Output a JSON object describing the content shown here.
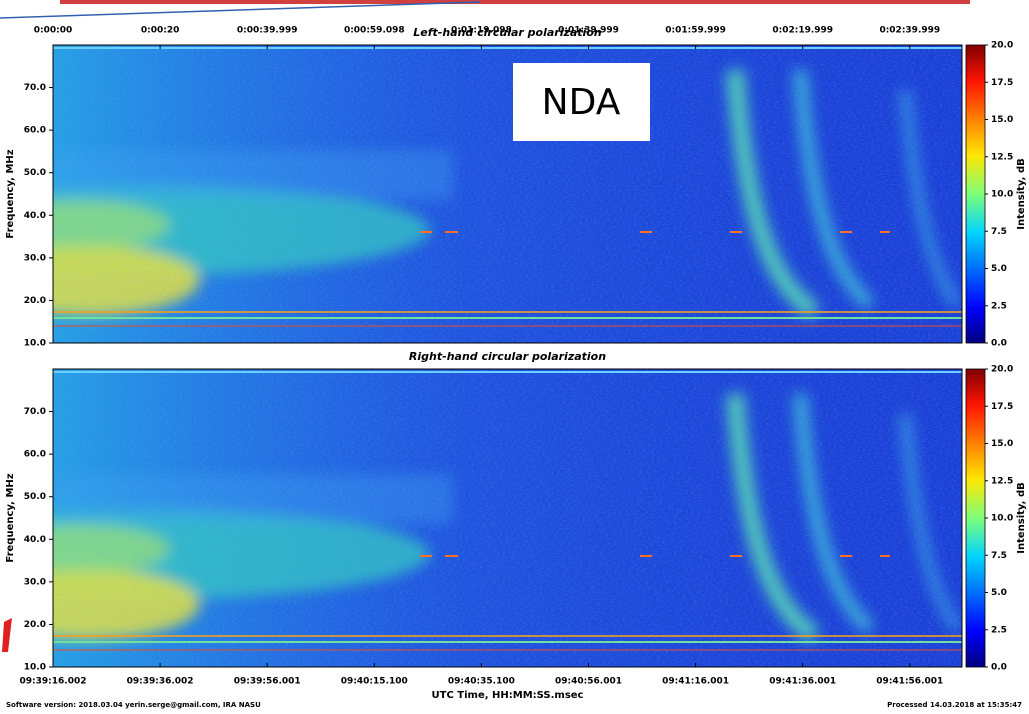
{
  "chart_data": [
    {
      "type": "heatmap",
      "title": "Left-hand circular polarization",
      "x_tick_labels": [
        "0:00:00",
        "0:00:20",
        "0:00:39.999",
        "0:00:59.098",
        "0:01:19.098",
        "0:01:39.999",
        "0:01:59.999",
        "0:02:19.999",
        "0:02:39.999"
      ],
      "ylabel": "Frequency, MHz",
      "ylim": [
        10,
        80
      ],
      "yticks": [
        {
          "value": 10,
          "label": "10.0"
        },
        {
          "value": 20,
          "label": "20.0"
        },
        {
          "value": 30,
          "label": "30.0"
        },
        {
          "value": 40,
          "label": "40.0"
        },
        {
          "value": 50,
          "label": "50.0"
        },
        {
          "value": 60,
          "label": "60.0"
        },
        {
          "value": 70,
          "label": "70.0"
        }
      ],
      "colorbar_label": "Intensity, dB",
      "clim": [
        0,
        20
      ],
      "cticks": [
        {
          "value": 0,
          "label": "0.0"
        },
        2.5,
        {
          "value": 5,
          "label": "5.0"
        },
        7.5,
        {
          "value": 10,
          "label": "10.0"
        },
        12.5,
        {
          "value": 15,
          "label": "15.0"
        },
        17.5,
        {
          "value": 20,
          "label": "20.0"
        }
      ],
      "annotation": "NDA"
    },
    {
      "type": "heatmap",
      "title": "Right-hand circular polarization",
      "x_tick_labels": [
        "09:39:16.002",
        "09:39:36.002",
        "09:39:56.001",
        "09:40:15.100",
        "09:40:35.100",
        "09:40:56.001",
        "09:41:16.001",
        "09:41:36.001",
        "09:41:56.001"
      ],
      "xlabel": "UTC Time, HH:MM:SS.msec",
      "ylabel": "Frequency, MHz",
      "ylim": [
        10,
        80
      ],
      "yticks": [
        {
          "value": 10,
          "label": "10.0"
        },
        {
          "value": 20,
          "label": "20.0"
        },
        {
          "value": 30,
          "label": "30.0"
        },
        {
          "value": 40,
          "label": "40.0"
        },
        {
          "value": 50,
          "label": "50.0"
        },
        {
          "value": 60,
          "label": "60.0"
        },
        {
          "value": 70,
          "label": "70.0"
        }
      ],
      "colorbar_label": "Intensity, dB",
      "clim": [
        0,
        20
      ],
      "cticks": [
        {
          "value": 0,
          "label": "0.0"
        },
        2.5,
        {
          "value": 5,
          "label": "5.0"
        },
        7.5,
        {
          "value": 10,
          "label": "10.0"
        },
        12.5,
        {
          "value": 15,
          "label": "15.0"
        },
        17.5,
        {
          "value": 20,
          "label": "20.0"
        }
      ]
    }
  ],
  "footer": {
    "left": "Software version: 2018.03.04 yerin.serge@gmail.com, IRA NASU",
    "right": "Processed 14.03.2018 at 15:35:47"
  }
}
